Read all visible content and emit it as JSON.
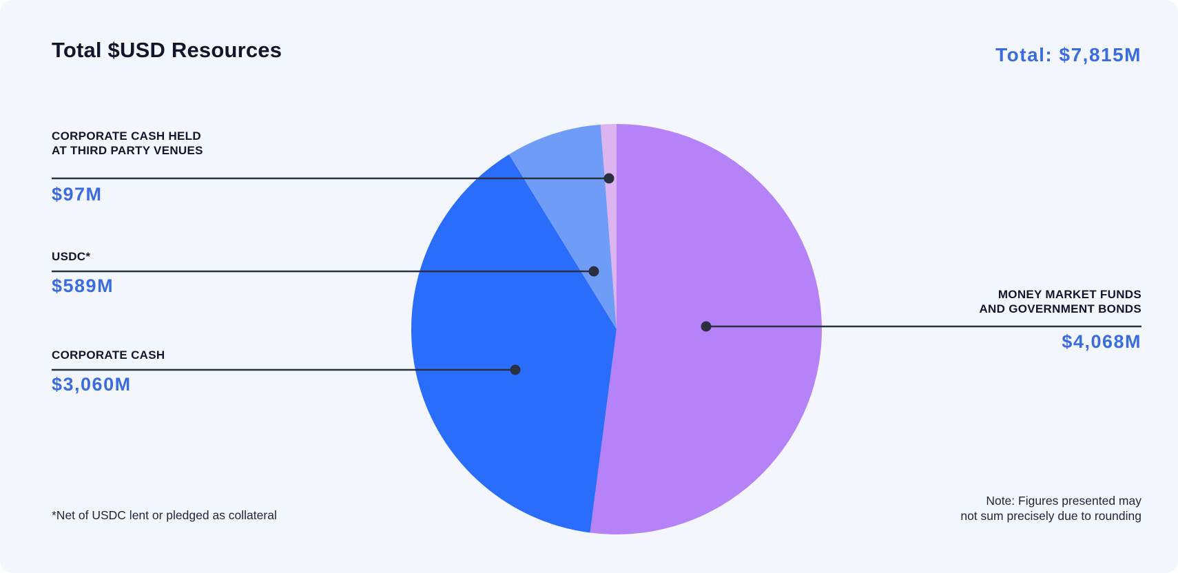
{
  "header": {
    "title": "Total $USD Resources",
    "total": "Total: $7,815M"
  },
  "callouts": [
    {
      "id": "third-party",
      "label_lines": [
        "CORPORATE CASH HELD",
        "AT THIRD PARTY VENUES"
      ],
      "value": "$97M"
    },
    {
      "id": "usdc",
      "label_lines": [
        "USDC*"
      ],
      "value": "$589M"
    },
    {
      "id": "corporate-cash",
      "label_lines": [
        "CORPORATE CASH"
      ],
      "value": "$3,060M"
    },
    {
      "id": "money-market",
      "label_lines": [
        "MONEY MARKET FUNDS",
        "AND GOVERNMENT BONDS"
      ],
      "value": "$4,068M"
    }
  ],
  "footnotes": {
    "left": "*Net of USDC lent or pledged as collateral",
    "right_lines": [
      "Note: Figures presented may",
      "not sum precisely due to rounding"
    ]
  },
  "theme": {
    "bg": "#F3F6FC",
    "page-bg": "#FFFFFF",
    "text-dark": "#13162A",
    "accent-blue": "#3A6CE0",
    "line-color": "#2A3040",
    "footnote-color": "#22273A"
  },
  "chart_data": {
    "type": "pie",
    "title": "Total $USD Resources",
    "total_label": "Total: $7,815M",
    "total_value": 7815,
    "units": "USD millions",
    "direction": "clockwise",
    "start_angle_deg_from_top": 0,
    "legend_position": "external-callouts",
    "slices": [
      {
        "id": "money-market",
        "label": "MONEY MARKET FUNDS AND GOVERNMENT BONDS",
        "value": 4068,
        "display_value": "$4,068M",
        "color": "#B583F7"
      },
      {
        "id": "corporate-cash",
        "label": "CORPORATE CASH",
        "value": 3060,
        "display_value": "$3,060M",
        "color": "#2B6DFB"
      },
      {
        "id": "usdc",
        "label": "USDC*",
        "value": 589,
        "display_value": "$589M",
        "color": "#6F9CF6"
      },
      {
        "id": "third-party",
        "label": "CORPORATE CASH HELD AT THIRD PARTY VENUES",
        "value": 97,
        "display_value": "$97M",
        "color": "#DCB5F0"
      }
    ]
  }
}
